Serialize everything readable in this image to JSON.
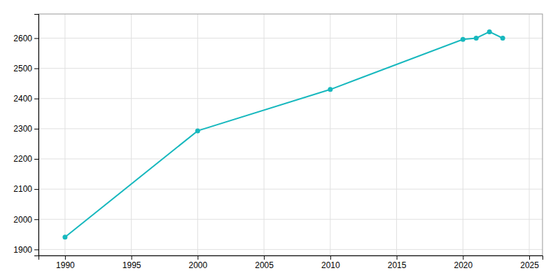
{
  "chart_data": {
    "type": "line",
    "x": [
      1990,
      2000,
      2010,
      2020,
      2021,
      2022,
      2023
    ],
    "values": [
      1941,
      2293,
      2430,
      2596,
      2600,
      2621,
      2600
    ],
    "color": "#17b8be",
    "marker": "circle",
    "xlim": [
      1988,
      2026
    ],
    "ylim": [
      1880,
      2680
    ],
    "xticks": [
      1990,
      1995,
      2000,
      2005,
      2010,
      2015,
      2020,
      2025
    ],
    "yticks": [
      1900,
      2000,
      2100,
      2200,
      2300,
      2400,
      2500,
      2600
    ],
    "grid": true
  }
}
